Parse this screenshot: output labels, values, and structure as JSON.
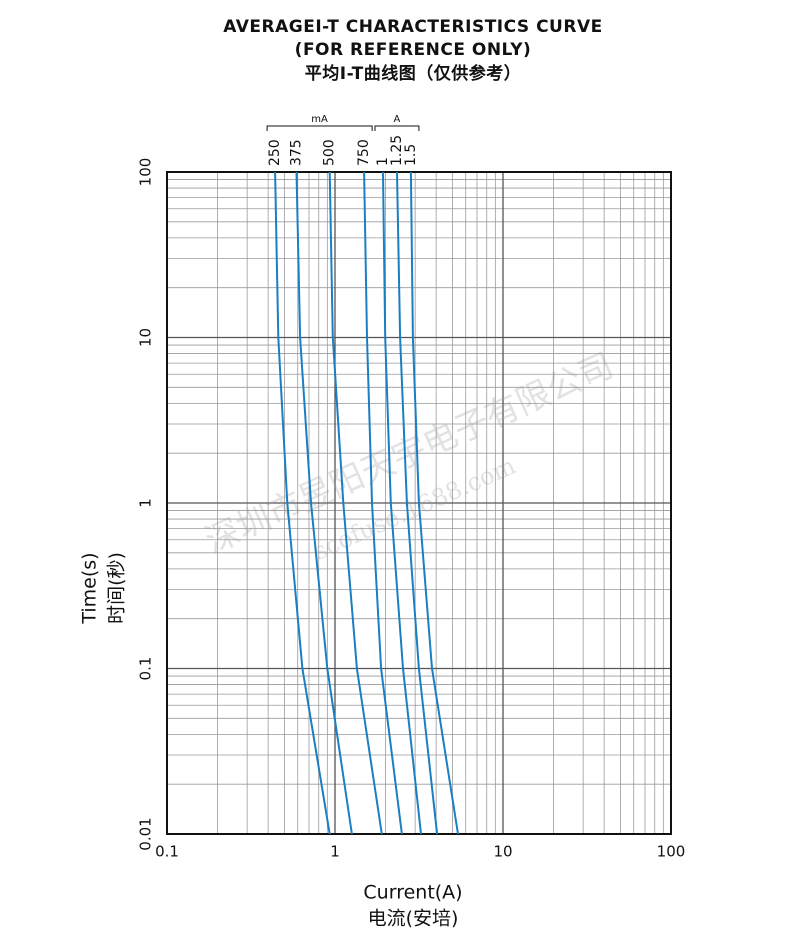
{
  "chart_data": {
    "type": "line",
    "title": "AVERAGEI-T CHARACTERISTICS CURVE",
    "subtitle": "(FOR REFERENCE ONLY)",
    "subtitle_cn": "平均I-T曲线图（仅供参考）",
    "x_label": "Current(A)",
    "x_label_cn": "电流(安培)",
    "y_label": "Time(s)",
    "y_label_cn": "时间(秒)",
    "group_labels": [
      "mA",
      "A"
    ],
    "watermark": [
      "深圳市昱阳天宇电子有限公司",
      "scofuse.1688.com"
    ],
    "xscale": "log",
    "yscale": "log",
    "grid": true,
    "minor_grid": true,
    "xlim": [
      0.1,
      100
    ],
    "xticks": [
      0.1,
      1,
      10,
      100
    ],
    "ylim": [
      0.01,
      100
    ],
    "yticks": [
      0.01,
      0.1,
      1,
      10,
      100
    ],
    "series": [
      {
        "name": "250",
        "color": "#1a7fc1",
        "x": [
          0.44,
          0.46,
          0.52,
          0.64,
          0.93
        ],
        "values": [
          100,
          10,
          1,
          0.1,
          0.01
        ]
      },
      {
        "name": "375",
        "color": "#1a7fc1",
        "x": [
          0.59,
          0.62,
          0.72,
          0.9,
          1.26
        ],
        "values": [
          100,
          10,
          1,
          0.1,
          0.01
        ]
      },
      {
        "name": "500",
        "color": "#1a7fc1",
        "x": [
          0.93,
          0.97,
          1.12,
          1.35,
          1.9
        ],
        "values": [
          100,
          10,
          1,
          0.1,
          0.01
        ]
      },
      {
        "name": "750",
        "color": "#1a7fc1",
        "x": [
          1.49,
          1.55,
          1.66,
          1.88,
          2.5
        ],
        "values": [
          100,
          10,
          1,
          0.1,
          0.01
        ]
      },
      {
        "name": "1",
        "color": "#1a7fc1",
        "x": [
          1.93,
          1.99,
          2.15,
          2.54,
          3.25
        ],
        "values": [
          100,
          10,
          1,
          0.1,
          0.01
        ]
      },
      {
        "name": "1.25",
        "color": "#1a7fc1",
        "x": [
          2.34,
          2.44,
          2.68,
          3.16,
          4.05
        ],
        "values": [
          100,
          10,
          1,
          0.1,
          0.01
        ]
      },
      {
        "name": "1.5",
        "color": "#1a7fc1",
        "x": [
          2.83,
          2.91,
          3.16,
          3.78,
          5.4
        ],
        "values": [
          100,
          10,
          1,
          0.1,
          0.01
        ]
      }
    ]
  }
}
